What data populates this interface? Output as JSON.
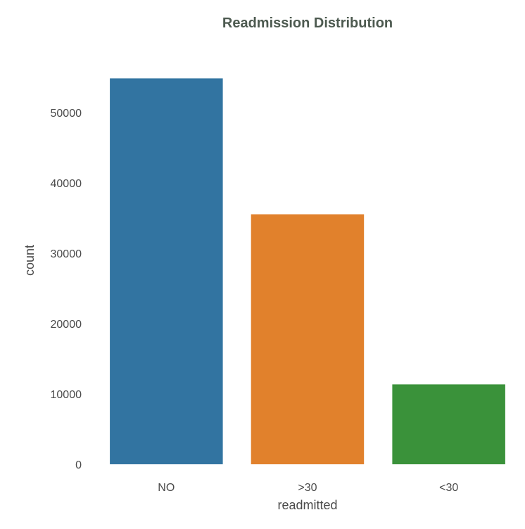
{
  "chart_data": {
    "type": "bar",
    "title": "Readmission Distribution",
    "xlabel": "readmitted",
    "ylabel": "count",
    "categories": [
      "NO",
      ">30",
      "<30"
    ],
    "values": [
      54864,
      35545,
      11357
    ],
    "colors": [
      "#3274a1",
      "#e1812c",
      "#3a923a"
    ],
    "ylim": [
      0,
      58000
    ],
    "yticks": [
      0,
      10000,
      20000,
      30000,
      40000,
      50000
    ],
    "ytick_labels": [
      "0",
      "10000",
      "20000",
      "30000",
      "40000",
      "50000"
    ],
    "grid": false,
    "legend": "none"
  }
}
